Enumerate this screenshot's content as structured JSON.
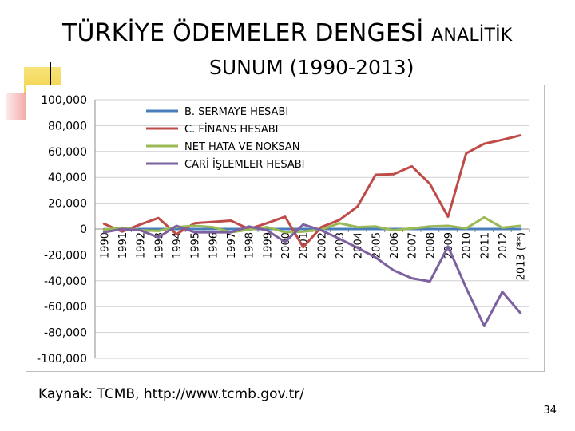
{
  "slide": {
    "title_main": "TÜRKİYE ÖDEMELER DENGESİ",
    "title_small": "ANALİTİK",
    "title_line2": "SUNUM (1990-2013)",
    "source": "Kaynak: TCMB, http://www.tcmb.gov.tr/",
    "page_number": "34"
  },
  "chart_data": {
    "type": "line",
    "title": "",
    "xlabel": "",
    "ylabel": "",
    "categories": [
      "1990",
      "1991",
      "1992",
      "1993",
      "1994",
      "1995",
      "1996",
      "1997",
      "1998",
      "1999",
      "2000",
      "2001",
      "2002",
      "2003",
      "2004",
      "2005",
      "2006",
      "2007",
      "2008",
      "2009",
      "2010",
      "2011",
      "2012",
      "2013 (**)"
    ],
    "ylim": [
      -100000,
      100000
    ],
    "yticks": [
      -100000,
      -80000,
      -60000,
      -40000,
      -20000,
      0,
      20000,
      40000,
      60000,
      80000,
      100000
    ],
    "ytick_labels": [
      "-100,000",
      "-80,000",
      "-60,000",
      "-40,000",
      "-20,000",
      "0",
      "20,000",
      "40,000",
      "60,000",
      "80,000",
      "100,000"
    ],
    "grid": true,
    "legend_position": "top-left",
    "series": [
      {
        "name": "B. SERMAYE HESABI",
        "color": "#4a7ebb",
        "values": [
          -100,
          -50,
          -30,
          -20,
          -20,
          -20,
          -20,
          0,
          -20,
          -20,
          0,
          0,
          0,
          0,
          0,
          0,
          0,
          0,
          0,
          0,
          0,
          0,
          0,
          0
        ]
      },
      {
        "name": "C. FİNANS HESABI",
        "color": "#be4b48",
        "values": [
          4000,
          -2000,
          3500,
          8500,
          -4000,
          4500,
          5500,
          6500,
          0,
          4500,
          9500,
          -14000,
          1500,
          7000,
          17500,
          42000,
          42500,
          48500,
          35000,
          9500,
          58500,
          66000,
          69000,
          72500
        ]
      },
      {
        "name": "NET HATA VE NOKSAN",
        "color": "#98b954",
        "values": [
          -500,
          1000,
          -1000,
          -1500,
          1500,
          2500,
          1500,
          -2500,
          -500,
          1500,
          -2500,
          -2000,
          -500,
          4500,
          1500,
          2000,
          -1000,
          500,
          2000,
          2500,
          500,
          9000,
          1000,
          2500
        ]
      },
      {
        "name": "CARİ İŞLEMLER HESABI",
        "color": "#7d60a0",
        "values": [
          -2500,
          0,
          -1000,
          -6500,
          2500,
          -2500,
          -2500,
          -2500,
          2000,
          -1000,
          -10000,
          3500,
          -1000,
          -7500,
          -14500,
          -22000,
          -32000,
          -38000,
          -40500,
          -13500,
          -45500,
          -75000,
          -48500,
          -65000
        ]
      }
    ]
  }
}
